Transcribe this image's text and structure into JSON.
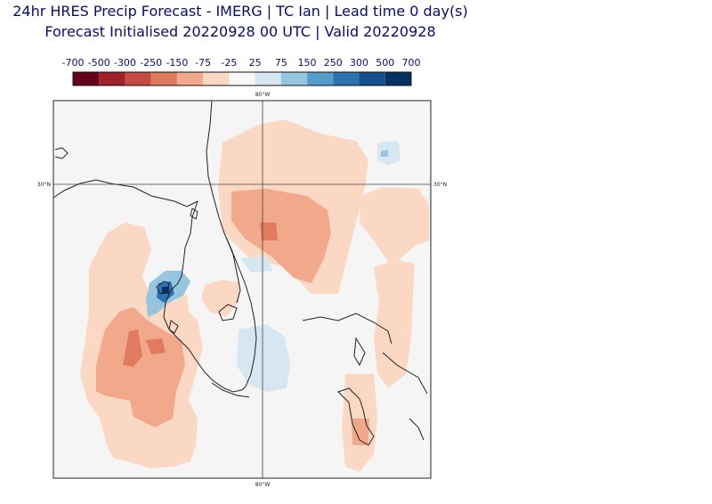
{
  "header": {
    "title_line1": "24hr HRES Precip Forecast - IMERG | TC Ian | Lead time 0 day(s)",
    "title_line2": "Forecast Initialised 20220928 00 UTC | Valid 20220928"
  },
  "colorbar": {
    "labels": [
      "-700",
      "-500",
      "-300",
      "-250",
      "-150",
      "-75",
      "-25",
      "25",
      "75",
      "150",
      "250",
      "300",
      "500",
      "700"
    ],
    "colors": [
      "#67001f",
      "#a2202b",
      "#c54a43",
      "#e07b5f",
      "#f2a98b",
      "#fbd8c4",
      "#f7f7f7",
      "#d6e7f1",
      "#95c5df",
      "#529ec8",
      "#2c72b0",
      "#15508e",
      "#053061"
    ]
  },
  "map": {
    "lon_labels": [
      "80°W",
      "80°W"
    ],
    "lat_labels": [
      "30°N",
      "30°N"
    ],
    "background": "#f5f5f5",
    "coast_color": "#222222"
  }
}
